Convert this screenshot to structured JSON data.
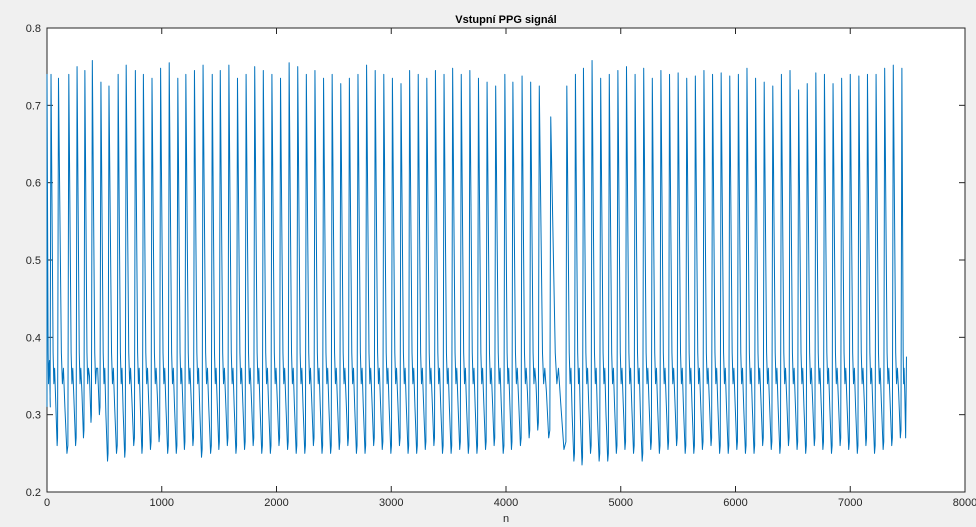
{
  "colors": {
    "figure_background": "#f0f0f0",
    "axes_background": "#ffffff",
    "axes_line": "#262626",
    "series_line": "#0072bd"
  },
  "chart_data": {
    "type": "line",
    "title": "Vstupní PPG signál",
    "xlabel": "n",
    "ylabel": "",
    "xlim": [
      0,
      8000
    ],
    "ylim": [
      0.2,
      0.8
    ],
    "grid": false,
    "x_ticks": [
      0,
      1000,
      2000,
      3000,
      4000,
      5000,
      6000,
      7000,
      8000
    ],
    "x_tick_labels": [
      "0",
      "1000",
      "2000",
      "3000",
      "4000",
      "5000",
      "6000",
      "7000",
      "8000"
    ],
    "y_ticks": [
      0.2,
      0.3,
      0.4,
      0.5,
      0.6,
      0.7,
      0.8
    ],
    "y_tick_labels": [
      "0.2",
      "0.3",
      "0.4",
      "0.5",
      "0.6",
      "0.7",
      "0.8"
    ],
    "series": [
      {
        "color": "#0072bd",
        "sample_range": [
          0,
          7490
        ],
        "beats": {
          "peak_n": [
            0,
            35,
            100,
            190,
            262,
            330,
            395,
            470,
            540,
            620,
            690,
            770,
            840,
            915,
            990,
            1065,
            1140,
            1210,
            1285,
            1360,
            1440,
            1510,
            1585,
            1660,
            1735,
            1810,
            1885,
            1960,
            2035,
            2110,
            2185,
            2260,
            2335,
            2410,
            2485,
            2560,
            2635,
            2710,
            2785,
            2860,
            2935,
            3010,
            3085,
            3160,
            3235,
            3310,
            3385,
            3460,
            3535,
            3610,
            3685,
            3760,
            3835,
            3910,
            3990,
            4060,
            4140,
            4215,
            4290,
            4390,
            4530,
            4605,
            4675,
            4750,
            4825,
            4900,
            4975,
            5050,
            5125,
            5200,
            5275,
            5350,
            5425,
            5500,
            5575,
            5650,
            5725,
            5800,
            5875,
            5950,
            6025,
            6100,
            6175,
            6250,
            6325,
            6400,
            6475,
            6550,
            6625,
            6700,
            6775,
            6850,
            6925,
            7000,
            7075,
            7150,
            7225,
            7300,
            7375,
            7450
          ],
          "peak_value": [
            0.74,
            0.74,
            0.735,
            0.74,
            0.75,
            0.745,
            0.758,
            0.73,
            0.725,
            0.74,
            0.752,
            0.745,
            0.74,
            0.735,
            0.748,
            0.755,
            0.735,
            0.74,
            0.745,
            0.752,
            0.74,
            0.745,
            0.752,
            0.735,
            0.74,
            0.75,
            0.745,
            0.74,
            0.735,
            0.755,
            0.75,
            0.74,
            0.745,
            0.735,
            0.74,
            0.728,
            0.735,
            0.74,
            0.752,
            0.745,
            0.74,
            0.735,
            0.728,
            0.745,
            0.74,
            0.735,
            0.745,
            0.74,
            0.748,
            0.74,
            0.745,
            0.735,
            0.73,
            0.725,
            0.74,
            0.73,
            0.738,
            0.73,
            0.725,
            0.685,
            0.725,
            0.74,
            0.748,
            0.758,
            0.735,
            0.74,
            0.745,
            0.75,
            0.74,
            0.748,
            0.735,
            0.745,
            0.74,
            0.742,
            0.735,
            0.738,
            0.745,
            0.74,
            0.742,
            0.738,
            0.74,
            0.748,
            0.735,
            0.73,
            0.725,
            0.74,
            0.745,
            0.72,
            0.728,
            0.742,
            0.74,
            0.728,
            0.735,
            0.74,
            0.738,
            0.74,
            0.74,
            0.748,
            0.752,
            0.748
          ],
          "trough_value": [
            0.31,
            0.26,
            0.25,
            0.26,
            0.27,
            0.29,
            0.3,
            0.24,
            0.25,
            0.245,
            0.26,
            0.25,
            0.255,
            0.265,
            0.25,
            0.25,
            0.255,
            0.26,
            0.245,
            0.25,
            0.255,
            0.26,
            0.25,
            0.255,
            0.26,
            0.25,
            0.25,
            0.26,
            0.255,
            0.25,
            0.25,
            0.26,
            0.25,
            0.25,
            0.255,
            0.26,
            0.25,
            0.25,
            0.26,
            0.255,
            0.25,
            0.26,
            0.25,
            0.25,
            0.255,
            0.26,
            0.25,
            0.25,
            0.255,
            0.25,
            0.25,
            0.255,
            0.26,
            0.25,
            0.255,
            0.26,
            0.27,
            0.28,
            0.27,
            0.255,
            0.24,
            0.235,
            0.25,
            0.24,
            0.24,
            0.25,
            0.255,
            0.25,
            0.24,
            0.255,
            0.25,
            0.255,
            0.26,
            0.25,
            0.25,
            0.255,
            0.26,
            0.25,
            0.25,
            0.255,
            0.25,
            0.25,
            0.26,
            0.255,
            0.25,
            0.26,
            0.255,
            0.25,
            0.26,
            0.255,
            0.25,
            0.26,
            0.255,
            0.25,
            0.26,
            0.25,
            0.255,
            0.26,
            0.27,
            0.27
          ],
          "notch_value": 0.36,
          "last_value": 0.375
        }
      }
    ]
  }
}
